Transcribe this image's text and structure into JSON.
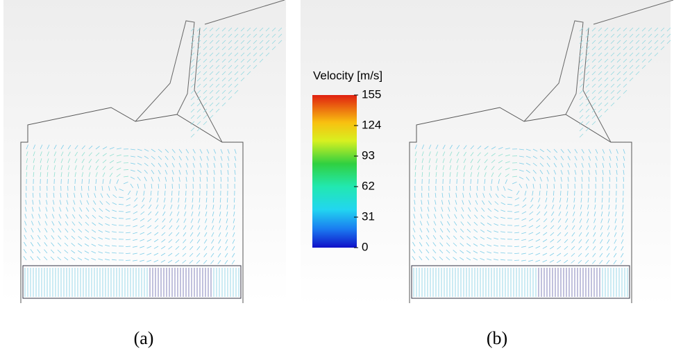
{
  "colorbar": {
    "title": "Velocity [m/s]",
    "ticks": [
      155,
      124,
      93,
      62,
      31,
      0
    ]
  },
  "captions": [
    "(a)",
    "(b)"
  ]
}
